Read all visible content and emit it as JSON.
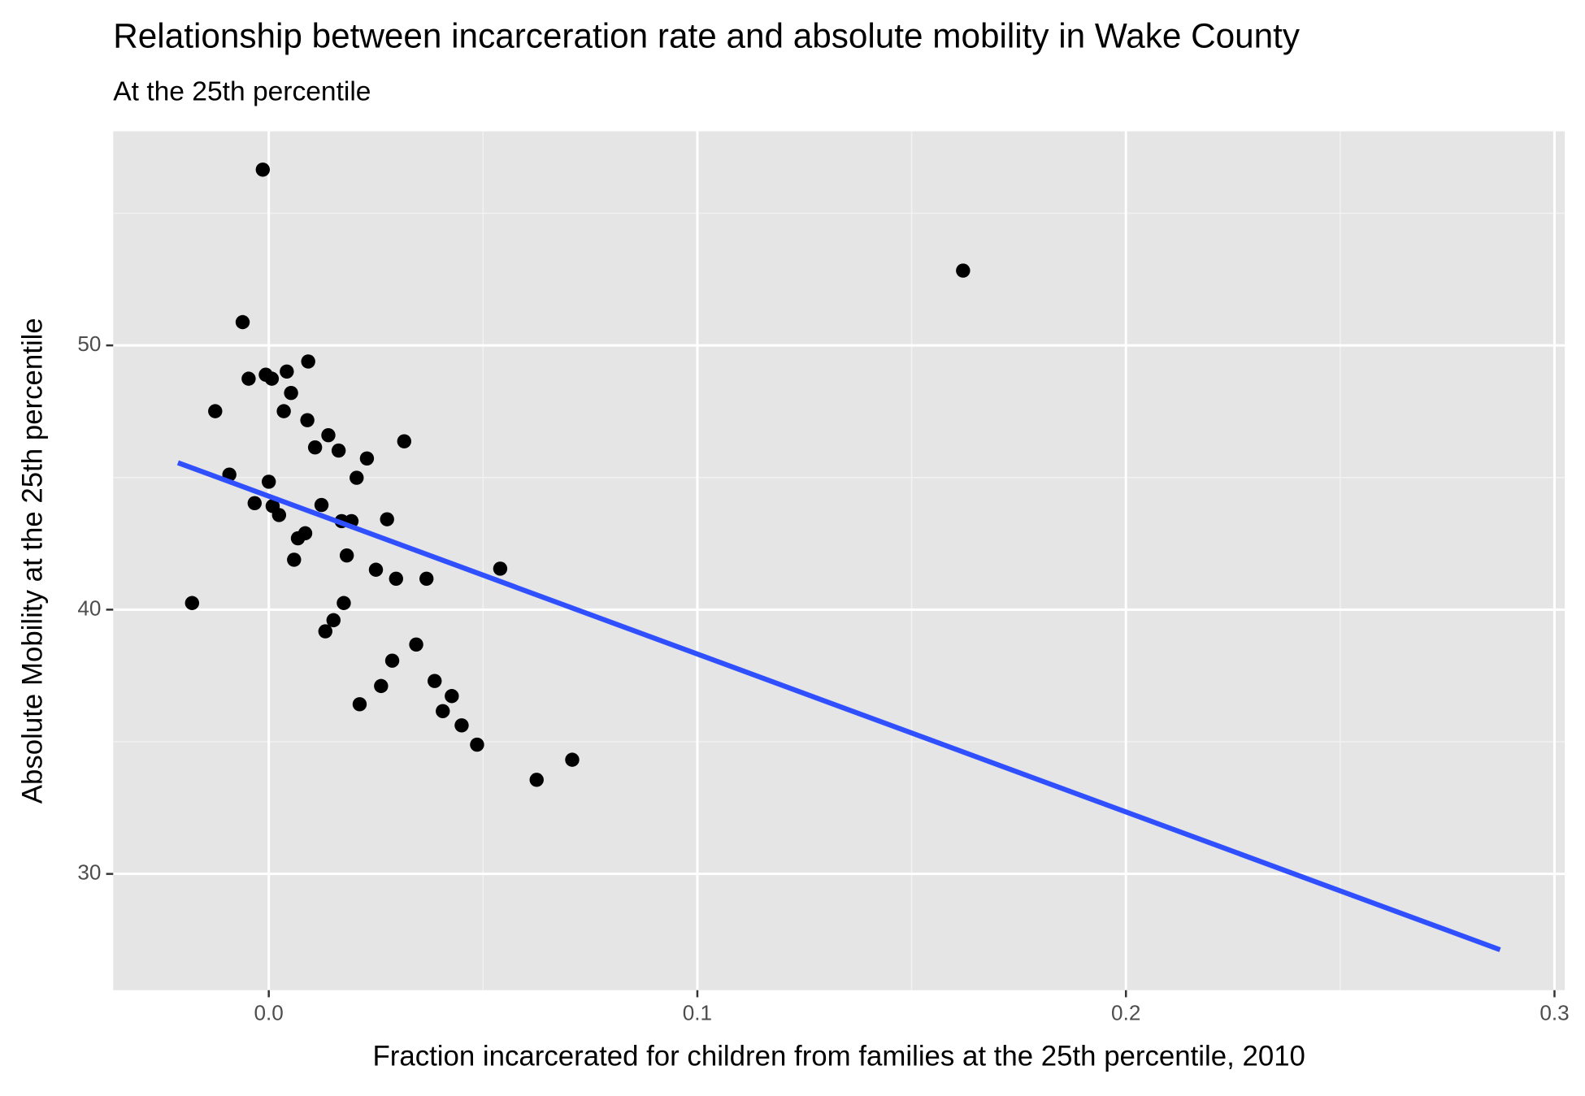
{
  "chart_data": {
    "type": "scatter",
    "title": "Relationship between incarceration rate and absolute mobility in Wake County",
    "subtitle": "At the 25th percentile",
    "x_label": "Fraction incarcerated for children from families at the 25th percentile, 2010",
    "y_label": "Absolute Mobility at the 25th percentile",
    "xlim": [
      -0.0363,
      0.3024
    ],
    "ylim": [
      25.6,
      58.1
    ],
    "xticks": [
      {
        "value": 0,
        "label": "0.0"
      },
      0.1,
      0.2,
      0.3
    ],
    "yticks": [
      30,
      40,
      50
    ],
    "minor_xticks": [
      0.05,
      0.15,
      0.25
    ],
    "minor_yticks": [
      35,
      45,
      55
    ],
    "grid": true,
    "point_color": "#000000",
    "x": [
      -0.0014,
      0.162,
      -0.0061,
      0.0092,
      0.0042,
      -0.0007,
      0.0007,
      -0.0047,
      0.0052,
      -0.0125,
      0.0035,
      0.009,
      0.0139,
      0.0316,
      0.0108,
      0.0163,
      0.0229,
      -0.0092,
      0.0,
      0.0205,
      -0.0033,
      0.0123,
      0.0009,
      0.0024,
      0.0276,
      0.017,
      0.0193,
      0.0085,
      0.0068,
      0.0182,
      0.0059,
      0.054,
      0.025,
      0.0297,
      0.0368,
      -0.0179,
      0.0175,
      0.0151,
      0.0132,
      0.0344,
      0.0288,
      0.0387,
      0.0262,
      0.0427,
      0.0212,
      0.0406,
      0.045,
      0.0486,
      0.0708,
      0.0625
    ],
    "y": [
      56.65,
      52.83,
      50.88,
      49.39,
      49.01,
      48.89,
      48.74,
      48.74,
      48.2,
      47.51,
      47.51,
      47.17,
      46.6,
      46.37,
      46.14,
      46.02,
      45.72,
      45.11,
      44.84,
      44.99,
      44.03,
      43.96,
      43.92,
      43.58,
      43.42,
      43.35,
      43.35,
      42.89,
      42.7,
      42.05,
      41.89,
      41.55,
      41.51,
      41.17,
      41.17,
      40.25,
      40.25,
      39.6,
      39.18,
      38.68,
      38.07,
      37.3,
      37.11,
      36.73,
      36.42,
      36.16,
      35.62,
      34.89,
      34.32,
      33.56
    ],
    "trend": {
      "color": "#3050ff",
      "x": [
        -0.0212,
        0.2873
      ],
      "y": [
        45.56,
        27.13
      ]
    }
  }
}
